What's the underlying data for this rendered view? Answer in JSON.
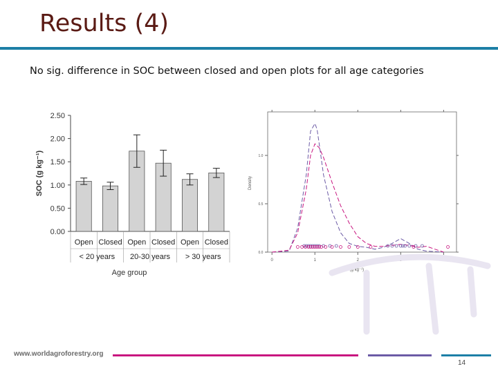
{
  "slide": {
    "title": "Results (4)",
    "subtitle": "No sig. difference in SOC between closed and open plots for all age categories",
    "footer_url": "www.worldagroforestry.org",
    "page_number": "14",
    "colors": {
      "title": "#5a1a14",
      "rule": "#1c7fa6",
      "magenta": "#c8157f",
      "purple": "#6b5aa5",
      "bar": "#d3d3d3"
    }
  },
  "chart_data": [
    {
      "type": "bar",
      "xlabel": "Age group",
      "ylabel": "SOC (g kg⁻¹)",
      "ylim": [
        0,
        2.5
      ],
      "yticks": [
        "0.00",
        "0.50",
        "1.00",
        "1.50",
        "2.00",
        "2.50"
      ],
      "categories": [
        "Open",
        "Closed",
        "Open",
        "Closed",
        "Open",
        "Closed"
      ],
      "groups": [
        {
          "label": "< 20 years",
          "span": [
            0,
            1
          ]
        },
        {
          "label": "20-30 years",
          "span": [
            2,
            3
          ]
        },
        {
          "label": "> 30 years",
          "span": [
            4,
            5
          ]
        }
      ],
      "values": [
        1.08,
        0.98,
        1.73,
        1.47,
        1.12,
        1.26
      ],
      "errors": [
        0.07,
        0.08,
        0.35,
        0.28,
        0.12,
        0.1
      ],
      "grid": false
    },
    {
      "type": "line",
      "xlabel": "SOC (g kg⁻¹)",
      "ylabel": "Density",
      "xlim": [
        -0.1,
        4.3
      ],
      "ylim": [
        0,
        1.45
      ],
      "xticks": [
        "0",
        "1",
        "2",
        "3",
        "4"
      ],
      "yticks": [
        "0.0",
        "0.5",
        "1.0"
      ],
      "series": [
        {
          "color": "#6b5aa5",
          "dash": "6,3",
          "x": [
            0,
            0.4,
            0.6,
            0.8,
            0.9,
            1.0,
            1.05,
            1.1,
            1.2,
            1.4,
            1.6,
            1.8,
            2.0,
            2.2,
            2.4,
            2.6,
            2.8,
            3.0,
            3.2,
            3.4,
            3.6,
            4.0
          ],
          "y": [
            0,
            0.01,
            0.25,
            0.8,
            1.25,
            1.33,
            1.27,
            1.12,
            0.8,
            0.42,
            0.2,
            0.09,
            0.06,
            0.05,
            0.03,
            0.05,
            0.09,
            0.14,
            0.09,
            0.03,
            0.01,
            0
          ]
        },
        {
          "color": "#c8157f",
          "dash": "6,3",
          "x": [
            0,
            0.4,
            0.6,
            0.8,
            0.9,
            1.0,
            1.1,
            1.2,
            1.4,
            1.6,
            1.8,
            2.0,
            2.2,
            2.4,
            2.6,
            2.8,
            3.0,
            3.2,
            3.4,
            3.6,
            3.8,
            4.0
          ],
          "y": [
            0,
            0.02,
            0.2,
            0.65,
            1.0,
            1.12,
            1.08,
            0.98,
            0.72,
            0.48,
            0.3,
            0.16,
            0.09,
            0.06,
            0.06,
            0.07,
            0.08,
            0.07,
            0.05,
            0.06,
            0.03,
            0
          ]
        }
      ],
      "rug": [
        {
          "color": "#6b5aa5",
          "x": [
            0.75,
            0.8,
            0.85,
            0.9,
            0.95,
            1.0,
            1.05,
            1.1,
            1.2,
            1.35,
            1.5,
            2.7,
            2.8,
            2.9,
            3.0,
            3.05,
            3.1,
            3.2,
            3.35,
            3.5
          ]
        },
        {
          "color": "#c8157f",
          "x": [
            0.6,
            0.7,
            0.78,
            0.85,
            0.9,
            0.95,
            1.0,
            1.05,
            1.1,
            1.15,
            1.25,
            1.4,
            1.6,
            1.8,
            2.0,
            2.3,
            3.3,
            4.1
          ]
        }
      ],
      "grid": false
    }
  ]
}
